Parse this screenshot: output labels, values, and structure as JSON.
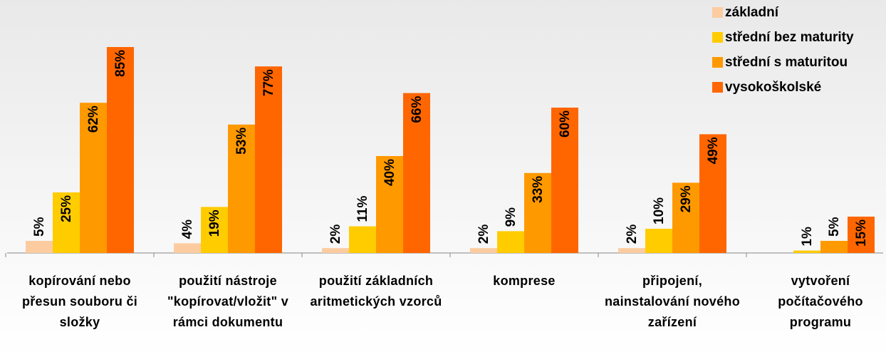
{
  "chart_data": {
    "type": "bar",
    "categories": [
      "kopírování nebo přesun souboru či složky",
      "použití nástroje \"kopírovat/vložit\" v rámci dokumentu",
      "použití základních aritmetických vzorců",
      "komprese",
      "připojení, nainstalování nového zařízení",
      "vytvoření počítačového programu"
    ],
    "series": [
      {
        "name": "základní",
        "color": "#fccca0",
        "values": [
          5,
          4,
          2,
          2,
          2,
          null
        ],
        "value_labels": [
          "5%",
          "4%",
          "2%",
          "2%",
          "2%",
          null
        ]
      },
      {
        "name": "střední bez maturity",
        "color": "#ffcc00",
        "values": [
          25,
          19,
          11,
          9,
          10,
          1
        ],
        "value_labels": [
          "25%",
          "19%",
          "11%",
          "9%",
          "10%",
          "1%"
        ]
      },
      {
        "name": "střední s maturitou",
        "color": "#ff9900",
        "values": [
          62,
          53,
          40,
          33,
          29,
          5
        ],
        "value_labels": [
          "62%",
          "53%",
          "40%",
          "33%",
          "29%",
          "5%"
        ]
      },
      {
        "name": "vysokoškolské",
        "color": "#ff6600",
        "values": [
          85,
          77,
          66,
          60,
          49,
          15
        ],
        "value_labels": [
          "85%",
          "77%",
          "66%",
          "60%",
          "49%",
          "15%"
        ]
      }
    ],
    "ylim": [
      0,
      100
    ],
    "legend": "top-right"
  }
}
